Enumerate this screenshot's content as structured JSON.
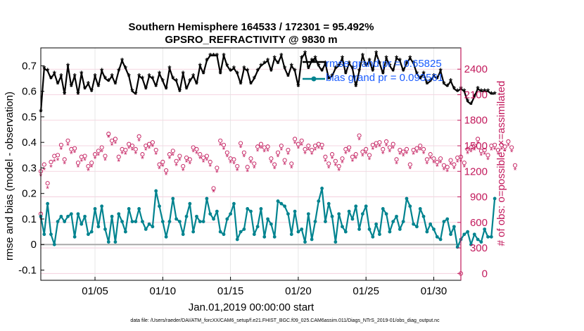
{
  "chart_data": {
    "type": "line",
    "title": "Southern Hemisphere 164533 / 172301 = 95.492%",
    "subtitle": "GPSRO_REFRACTIVITY @ 9830 m",
    "xlabel": "Jan.01,2019 00:00:00 start",
    "ylabel": "rmse and bias (model - observation)",
    "ylabel_right": "# of obs: o=possible; ×=assimilated",
    "footnote": "data file: /Users/raeder/DAI/ATM_forcXX/CAM6_setup/f.e21.FHIST_BGC.f09_025.CAM6assim.011/Diags_NTrS_2019-01/obs_diag_output.nc",
    "xlim": [
      1,
      32
    ],
    "ylim": [
      -0.14,
      0.77
    ],
    "ylim_right": [
      -80,
      2650
    ],
    "x_ticks": [
      5,
      10,
      15,
      20,
      25,
      30
    ],
    "x_tick_labels": [
      "01/05",
      "01/10",
      "01/15",
      "01/20",
      "01/25",
      "01/30"
    ],
    "y_ticks": [
      -0.1,
      0,
      0.1,
      0.2,
      0.3,
      0.4,
      0.5,
      0.6,
      0.7
    ],
    "y_tick_labels": [
      "-0.1",
      "0",
      "0.1",
      "0.2",
      "0.3",
      "0.4",
      "0.5",
      "0.6",
      "0.7"
    ],
    "y_right_ticks": [
      0,
      300,
      600,
      900,
      1200,
      1500,
      1800,
      2100,
      2400
    ],
    "y_right_tick_labels": [
      "0",
      "300",
      "600",
      "900",
      "1200",
      "1500",
      "1800",
      "2100",
      "2400"
    ],
    "grid": true,
    "legend": {
      "location": "top-right",
      "entries": [
        "rmse grand pr = 0.65825",
        "bias grand pr = 0.093561"
      ]
    },
    "colors": {
      "rmse": "#000000",
      "bias": "#00838f",
      "obs": "#c2185b",
      "zero_line": "#aaaaaa",
      "legend_text": "#1a5cff"
    },
    "x_start": 1.0,
    "x_step": 0.25,
    "series": [
      {
        "name": "rmse",
        "axis": "left",
        "values": [
          0.52,
          0.69,
          0.68,
          0.65,
          0.67,
          0.63,
          0.66,
          0.59,
          0.7,
          0.62,
          0.66,
          0.59,
          0.67,
          0.61,
          0.63,
          0.6,
          0.66,
          0.62,
          0.68,
          0.65,
          0.64,
          0.66,
          0.63,
          0.68,
          0.72,
          0.69,
          0.66,
          0.6,
          0.59,
          0.66,
          0.65,
          0.61,
          0.66,
          0.65,
          0.62,
          0.67,
          0.64,
          0.61,
          0.69,
          0.65,
          0.64,
          0.6,
          0.67,
          0.61,
          0.64,
          0.66,
          0.63,
          0.7,
          0.67,
          0.72,
          0.74,
          0.74,
          0.74,
          0.67,
          0.74,
          0.7,
          0.68,
          0.69,
          0.67,
          0.63,
          0.69,
          0.68,
          0.63,
          0.65,
          0.68,
          0.7,
          0.71,
          0.72,
          0.68,
          0.73,
          0.71,
          0.74,
          0.69,
          0.66,
          0.7,
          0.68,
          0.62,
          0.73,
          0.75,
          0.69,
          0.72,
          0.73,
          0.7,
          0.68,
          0.71,
          0.65,
          0.66,
          0.69,
          0.7,
          0.73,
          0.67,
          0.71,
          0.69,
          0.62,
          0.68,
          0.74,
          0.7,
          0.72,
          0.68,
          0.75,
          0.71,
          0.67,
          0.73,
          0.7,
          0.68,
          0.73,
          0.72,
          0.68,
          0.71,
          0.73,
          0.71,
          0.67,
          0.65,
          0.67,
          0.63,
          0.64,
          0.66,
          0.65,
          0.68,
          0.63,
          0.62,
          0.64,
          0.61,
          0.6,
          0.61,
          0.6,
          0.56,
          0.55,
          0.58,
          0.61,
          0.6,
          0.6,
          0.6,
          0.59,
          0.59
        ]
      },
      {
        "name": "bias",
        "axis": "left",
        "values": [
          0.11,
          0.04,
          0.16,
          0.04,
          0.0,
          0.09,
          0.11,
          0.09,
          0.11,
          0.12,
          0.03,
          0.12,
          0.08,
          0.11,
          0.04,
          0.05,
          0.14,
          0.07,
          0.15,
          0.06,
          0.01,
          0.11,
          0.01,
          0.12,
          0.09,
          0.05,
          0.14,
          0.09,
          0.09,
          0.14,
          0.09,
          0.06,
          0.08,
          0.07,
          0.21,
          0.15,
          0.09,
          0.03,
          0.09,
          0.18,
          0.1,
          0.09,
          0.04,
          0.11,
          0.16,
          0.05,
          0.11,
          0.09,
          0.09,
          0.18,
          0.12,
          0.1,
          0.13,
          0.05,
          0.04,
          0.1,
          0.12,
          0.16,
          0.02,
          0.05,
          0.06,
          0.14,
          0.13,
          0.04,
          0.07,
          0.14,
          0.03,
          0.1,
          0.08,
          0.03,
          0.17,
          0.16,
          0.15,
          0.12,
          0.04,
          0.13,
          0.05,
          0.06,
          0.01,
          0.12,
          0.02,
          0.09,
          0.17,
          0.22,
          0.09,
          0.16,
          0.11,
          0.01,
          0.12,
          0.07,
          0.05,
          0.13,
          0.1,
          0.15,
          0.06,
          0.12,
          0.15,
          0.06,
          0.03,
          0.08,
          0.04,
          0.14,
          0.12,
          0.05,
          0.09,
          0.11,
          0.06,
          0.09,
          0.18,
          0.15,
          0.08,
          0.07,
          0.14,
          0.11,
          0.05,
          0.08,
          0.06,
          0.03,
          0.02,
          0.09,
          0.1,
          0.04,
          0.07,
          -0.01,
          0.02,
          0.04,
          0.05,
          0.0,
          0.04,
          0.02,
          0.01,
          0.06,
          0.03,
          0.03,
          0.18
        ]
      },
      {
        "name": "obs possible",
        "axis": "right",
        "values": [
          1200,
          1280,
          1060,
          1310,
          1380,
          1390,
          1510,
          1340,
          1560,
          1460,
          1470,
          1300,
          1370,
          1380,
          1260,
          1300,
          1400,
          1440,
          1480,
          1380,
          1640,
          1560,
          1580,
          1370,
          1460,
          1450,
          1520,
          1500,
          1460,
          1610,
          1400,
          1500,
          1520,
          1540,
          1450,
          1280,
          1310,
          1210,
          1400,
          1440,
          1320,
          1380,
          1260,
          1360,
          1340,
          1480,
          1460,
          1400,
          1360,
          1380,
          1310,
          1000,
          1240,
          1560,
          1510,
          1420,
          1350,
          1340,
          1260,
          1530,
          1420,
          1250,
          1350,
          1290,
          1490,
          1520,
          1480,
          1490,
          1350,
          1280,
          1420,
          1500,
          1330,
          1450,
          1290,
          1580,
          1520,
          1560,
          1460,
          1500,
          1450,
          1500,
          1520,
          1510,
          1370,
          1290,
          1400,
          1320,
          1260,
          1350,
          1460,
          1480,
          1370,
          1400,
          1620,
          1430,
          1460,
          1390,
          1510,
          1530,
          1540,
          1460,
          1550,
          1480,
          1520,
          1340,
          1450,
          1430,
          1460,
          1280,
          1450,
          1470,
          1500,
          1460,
          1340,
          1400,
          1350,
          1310,
          1350,
          1270,
          1250,
          1330,
          1280,
          1360,
          1370,
          1300,
          1460,
          1480,
          1500,
          1580,
          1440,
          1450,
          1390,
          1500,
          1510,
          1450,
          1510,
          1490,
          1550,
          1480,
          1270
        ]
      },
      {
        "name": "obs assimilated",
        "axis": "right",
        "values": [
          1150,
          1220,
          1000,
          1250,
          1320,
          1330,
          1460,
          1290,
          1510,
          1410,
          1420,
          1250,
          1320,
          1330,
          1210,
          1250,
          1350,
          1390,
          1430,
          1330,
          1600,
          1510,
          1530,
          1320,
          1410,
          1400,
          1470,
          1450,
          1410,
          1560,
          1350,
          1450,
          1470,
          1490,
          1400,
          1230,
          1260,
          1160,
          1350,
          1390,
          1270,
          1330,
          1210,
          1310,
          1290,
          1430,
          1410,
          1350,
          1310,
          1330,
          1260,
          960,
          1190,
          1510,
          1460,
          1370,
          1300,
          1290,
          1210,
          1480,
          1370,
          1200,
          1300,
          1240,
          1440,
          1470,
          1430,
          1440,
          1300,
          1230,
          1370,
          1450,
          1280,
          1400,
          1240,
          1530,
          1470,
          1510,
          1410,
          1450,
          1400,
          1450,
          1470,
          1460,
          1320,
          1240,
          1350,
          1270,
          1210,
          1300,
          1410,
          1430,
          1320,
          1350,
          1570,
          1380,
          1410,
          1340,
          1460,
          1480,
          1490,
          1410,
          1500,
          1430,
          1470,
          1290,
          1400,
          1380,
          1410,
          1230,
          1400,
          1420,
          1450,
          1410,
          1290,
          1350,
          1300,
          1260,
          1300,
          1220,
          1200,
          1280,
          1230,
          1310,
          1320,
          1250,
          1410,
          1430,
          1450,
          1530,
          1390,
          1400,
          1340,
          1450,
          1460,
          1400,
          1460,
          1440,
          1500,
          1430,
          1220
        ]
      }
    ],
    "extra_marks": [
      {
        "name": "obs-possible-start",
        "axis": "right",
        "x": 1.0,
        "y": 700
      },
      {
        "name": "obs-assimilated-start",
        "axis": "right",
        "x": 1.0,
        "y": 640
      },
      {
        "name": "obs-possible-end",
        "axis": "right",
        "x": 32.0,
        "y": 0
      }
    ]
  }
}
